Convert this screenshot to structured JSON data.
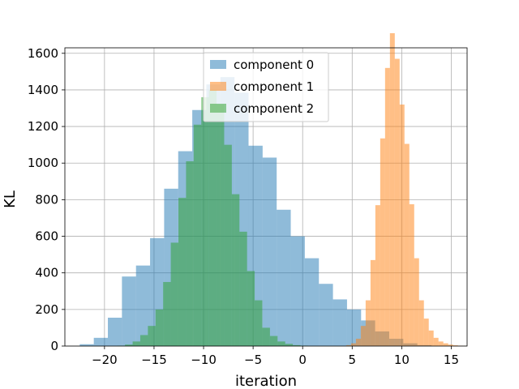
{
  "chart_data": {
    "type": "bar",
    "subtype": "histogram",
    "xlabel": "iteration",
    "ylabel": "KL",
    "xlim": [
      -24.0,
      16.6
    ],
    "ylim": [
      0,
      1630
    ],
    "xticks": [
      -20,
      -15,
      -10,
      -5,
      0,
      5,
      10,
      15
    ],
    "xtick_labels": [
      "−20",
      "−15",
      "−10",
      "−5",
      "0",
      "5",
      "10",
      "15"
    ],
    "yticks": [
      0,
      200,
      400,
      600,
      800,
      1000,
      1200,
      1400,
      1600
    ],
    "ytick_labels": [
      "0",
      "200",
      "400",
      "600",
      "800",
      "1000",
      "1200",
      "1400",
      "1600"
    ],
    "grid": true,
    "legend_position": "upper-center",
    "series": [
      {
        "name": "component 0",
        "color": "#1f77b4",
        "alpha": 0.5,
        "bin_start": -22.5,
        "bin_width": 1.42,
        "values": [
          10,
          45,
          155,
          380,
          440,
          590,
          860,
          1065,
          1290,
          1430,
          1470,
          1385,
          1095,
          1030,
          745,
          600,
          480,
          340,
          255,
          200,
          140,
          80,
          40,
          15,
          5
        ]
      },
      {
        "name": "component 1",
        "color": "#ff7f0e",
        "alpha": 0.5,
        "bin_start": 4.4,
        "bin_width": 0.49,
        "values": [
          5,
          15,
          40,
          110,
          250,
          470,
          770,
          1135,
          1520,
          1710,
          1570,
          1320,
          1105,
          775,
          480,
          250,
          150,
          85,
          45,
          25,
          15,
          8,
          4,
          2,
          1
        ]
      },
      {
        "name": "component 2",
        "color": "#2ca02c",
        "alpha": 0.5,
        "bin_start": -18.7,
        "bin_width": 0.77,
        "values": [
          2,
          8,
          25,
          60,
          110,
          200,
          350,
          565,
          810,
          1010,
          1210,
          1360,
          1400,
          1320,
          1100,
          830,
          625,
          410,
          250,
          100,
          55,
          25,
          12,
          5,
          2
        ]
      }
    ]
  }
}
